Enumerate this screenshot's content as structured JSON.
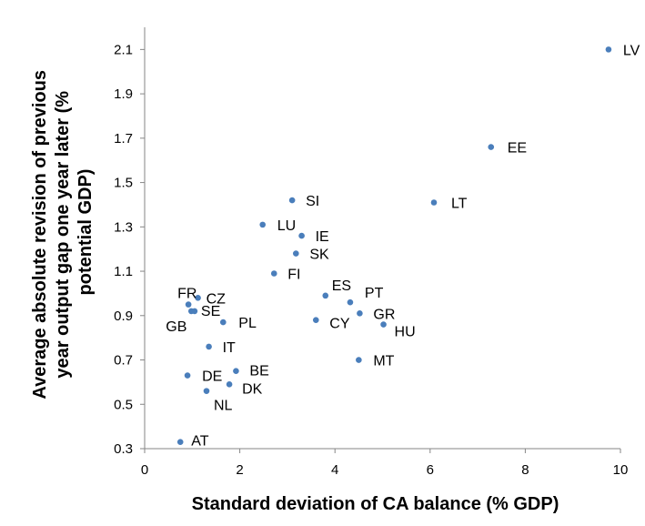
{
  "chart_data": {
    "type": "scatter",
    "title": "",
    "xlabel": "Standard deviation of CA balance (% GDP)",
    "ylabel_lines": [
      "Average absolute revision of previous",
      "year output gap one year later (%",
      "potential GDP)"
    ],
    "xlim": [
      0,
      10
    ],
    "ylim": [
      0.3,
      2.2
    ],
    "xticks": [
      "0",
      "2",
      "4",
      "6",
      "8",
      "10"
    ],
    "yticks": [
      "0.3",
      "0.5",
      "0.7",
      "0.9",
      "1.1",
      "1.3",
      "1.5",
      "1.7",
      "1.9",
      "2.1"
    ],
    "grid": false,
    "legend": "none",
    "marker_color": "#4a7ebb",
    "points": [
      {
        "label": "LV",
        "x": 9.75,
        "y": 2.1
      },
      {
        "label": "EE",
        "x": 7.28,
        "y": 1.66
      },
      {
        "label": "LT",
        "x": 6.08,
        "y": 1.41
      },
      {
        "label": "SI",
        "x": 3.1,
        "y": 1.42
      },
      {
        "label": "LU",
        "x": 2.48,
        "y": 1.31
      },
      {
        "label": "IE",
        "x": 3.3,
        "y": 1.26
      },
      {
        "label": "SK",
        "x": 3.18,
        "y": 1.18
      },
      {
        "label": "FI",
        "x": 2.72,
        "y": 1.09
      },
      {
        "label": "ES",
        "x": 3.8,
        "y": 0.99
      },
      {
        "label": "PT",
        "x": 4.32,
        "y": 0.96
      },
      {
        "label": "GR",
        "x": 4.52,
        "y": 0.91
      },
      {
        "label": "HU",
        "x": 5.02,
        "y": 0.86
      },
      {
        "label": "CY",
        "x": 3.6,
        "y": 0.88
      },
      {
        "label": "MT",
        "x": 4.5,
        "y": 0.7
      },
      {
        "label": "FR",
        "x": 0.92,
        "y": 0.95
      },
      {
        "label": "CZ",
        "x": 1.12,
        "y": 0.98
      },
      {
        "label": "SE",
        "x": 1.05,
        "y": 0.92
      },
      {
        "label": "GB",
        "x": 0.98,
        "y": 0.92
      },
      {
        "label": "PL",
        "x": 1.65,
        "y": 0.87
      },
      {
        "label": "IT",
        "x": 1.35,
        "y": 0.76
      },
      {
        "label": "DE",
        "x": 0.9,
        "y": 0.63
      },
      {
        "label": "BE",
        "x": 1.92,
        "y": 0.65
      },
      {
        "label": "DK",
        "x": 1.78,
        "y": 0.59
      },
      {
        "label": "NL",
        "x": 1.3,
        "y": 0.56
      },
      {
        "label": "AT",
        "x": 0.75,
        "y": 0.33
      }
    ]
  }
}
